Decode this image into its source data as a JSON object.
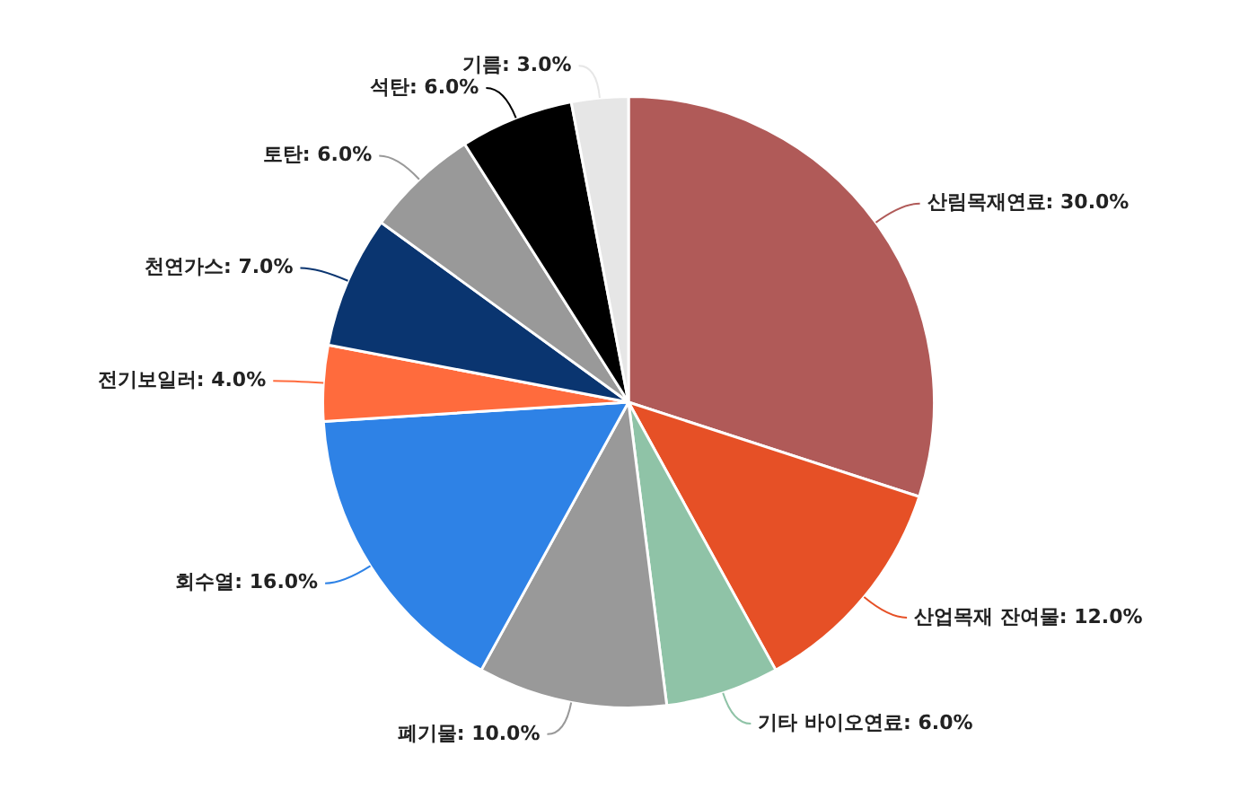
{
  "chart_data": {
    "type": "pie",
    "categories": [
      "산림목재연료",
      "산업목재 잔여물",
      "기타 바이오연료",
      "폐기물",
      "회수열",
      "전기보일러",
      "천연가스",
      "토탄",
      "석탄",
      "기름"
    ],
    "values": [
      30,
      12,
      6,
      10,
      16,
      4,
      7,
      6,
      6,
      3
    ],
    "value_labels": [
      "30.0%",
      "12.0%",
      "6.0%",
      "10.0%",
      "16.0%",
      "4.0%",
      "7.0%",
      "6.0%",
      "6.0%",
      "3.0%"
    ],
    "colors": [
      "#b05a58",
      "#e65026",
      "#8fc3a7",
      "#999999",
      "#2e82e6",
      "#ff6b3d",
      "#0a3570",
      "#999999",
      "#000000",
      "#e6e6e6"
    ],
    "legend": false
  }
}
